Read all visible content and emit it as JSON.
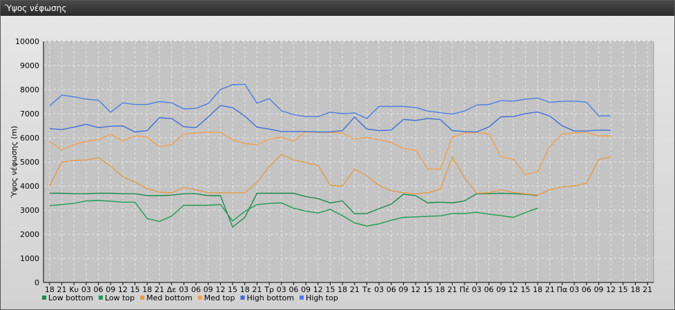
{
  "window": {
    "title": "Ύψος νέφωσης"
  },
  "chart_data": {
    "type": "line",
    "title": "",
    "xlabel": "",
    "ylabel": "Ύψος νέφωσης (m)",
    "ylim": [
      0,
      10000
    ],
    "yticks": [
      0,
      1000,
      2000,
      3000,
      4000,
      5000,
      6000,
      7000,
      8000,
      9000,
      10000
    ],
    "grid": true,
    "legend_position": "bottom-left",
    "categories": [
      "18",
      "21",
      "Κυ",
      "03",
      "06",
      "09",
      "12",
      "15",
      "18",
      "21",
      "Δε",
      "03",
      "06",
      "09",
      "12",
      "15",
      "18",
      "21",
      "Τρ",
      "03",
      "06",
      "09",
      "12",
      "15",
      "18",
      "21",
      "Τε",
      "03",
      "06",
      "09",
      "12",
      "15",
      "18",
      "21",
      "Πέ",
      "03",
      "06",
      "09",
      "12",
      "15",
      "18",
      "21",
      "Πα",
      "03",
      "06",
      "09",
      "12",
      "15",
      "18",
      "21"
    ],
    "series": [
      {
        "name": "Low bottom",
        "color": "#1b8a4b",
        "values": [
          3700,
          3700,
          3680,
          3680,
          3700,
          3700,
          3680,
          3680,
          3600,
          3600,
          3620,
          3680,
          3680,
          3600,
          3600,
          2300,
          2700,
          3700,
          3700,
          3700,
          3700,
          3560,
          3480,
          3300,
          3380,
          2850,
          2860,
          3060,
          3250,
          3660,
          3600,
          3300,
          3330,
          3300,
          3380,
          3680,
          3680,
          3700,
          3680,
          3660,
          3600,
          null,
          null,
          null,
          null,
          null,
          null,
          null,
          null,
          null
        ]
      },
      {
        "name": "Low top",
        "color": "#1f9a55",
        "values": [
          3180,
          3230,
          3280,
          3380,
          3400,
          3370,
          3330,
          3330,
          2650,
          2530,
          2750,
          3200,
          3200,
          3200,
          3230,
          2550,
          2950,
          3230,
          3280,
          3300,
          3080,
          2960,
          2880,
          3030,
          2770,
          2470,
          2340,
          2430,
          2580,
          2700,
          2720,
          2740,
          2760,
          2860,
          2860,
          2910,
          2830,
          2770,
          2700,
          2900,
          3080,
          null,
          null,
          null,
          null,
          null,
          null,
          null,
          null,
          null
        ]
      },
      {
        "name": "Med bottom",
        "color": "#e69a45",
        "values": [
          4000,
          5000,
          5060,
          5080,
          5170,
          4830,
          4380,
          4160,
          3900,
          3740,
          3720,
          3940,
          3850,
          3720,
          3720,
          3720,
          3720,
          4150,
          4800,
          5320,
          5080,
          4970,
          4860,
          4020,
          4000,
          4700,
          4420,
          4020,
          3800,
          3720,
          3680,
          3720,
          3860,
          5200,
          4350,
          3700,
          3720,
          3840,
          3730,
          3680,
          3620,
          3850,
          3960,
          4000,
          4120,
          5100,
          5200,
          null,
          null,
          null
        ]
      },
      {
        "name": "Med top",
        "color": "#f0a050",
        "values": [
          5850,
          5500,
          5720,
          5850,
          5920,
          6140,
          5880,
          6080,
          6020,
          5620,
          5720,
          6160,
          6200,
          6240,
          6220,
          5920,
          5760,
          5710,
          5950,
          6030,
          5870,
          6240,
          6220,
          6230,
          6200,
          5940,
          6020,
          5920,
          5800,
          5550,
          5480,
          4700,
          4700,
          6020,
          6200,
          6220,
          6160,
          5200,
          5120,
          4480,
          4580,
          5640,
          6160,
          6200,
          6220,
          6080,
          6080,
          null,
          null,
          null
        ]
      },
      {
        "name": "High bottom",
        "color": "#3d6fd6",
        "values": [
          6380,
          6340,
          6440,
          6560,
          6420,
          6480,
          6490,
          6240,
          6300,
          6830,
          6800,
          6460,
          6420,
          6860,
          7340,
          7250,
          6900,
          6440,
          6360,
          6260,
          6260,
          6260,
          6240,
          6240,
          6300,
          6860,
          6360,
          6300,
          6320,
          6760,
          6720,
          6800,
          6760,
          6300,
          6260,
          6240,
          6450,
          6870,
          6880,
          7000,
          7070,
          6900,
          6500,
          6280,
          6280,
          6320,
          6310,
          null,
          null,
          null
        ]
      },
      {
        "name": "High top",
        "color": "#4a7ee0",
        "values": [
          7320,
          7770,
          7700,
          7600,
          7560,
          7060,
          7450,
          7380,
          7380,
          7500,
          7450,
          7200,
          7220,
          7420,
          8000,
          8200,
          8220,
          7440,
          7620,
          7120,
          6960,
          6880,
          6880,
          7060,
          7000,
          7030,
          6800,
          7300,
          7300,
          7300,
          7260,
          7110,
          7040,
          6980,
          7110,
          7360,
          7380,
          7540,
          7520,
          7600,
          7650,
          7470,
          7510,
          7520,
          7480,
          6910,
          6910,
          null,
          null,
          null
        ]
      }
    ]
  }
}
